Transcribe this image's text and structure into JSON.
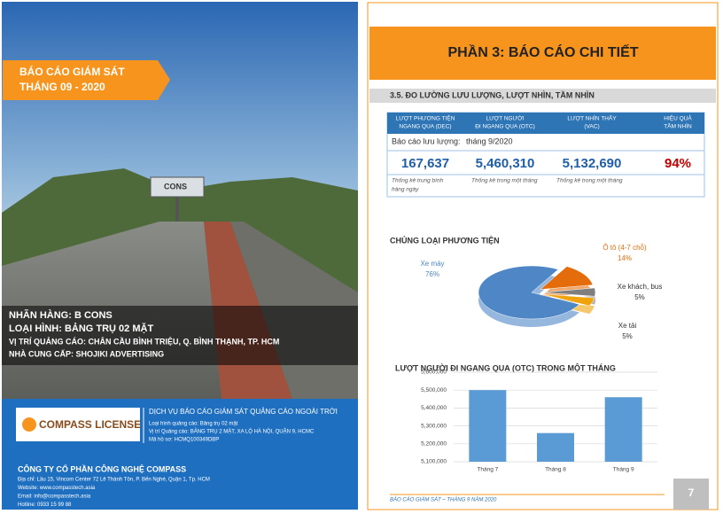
{
  "cover": {
    "banner": [
      "BÁO CÁO GIÁM SÁT",
      "THÁNG 09 - 2020"
    ],
    "billboard": "CONS",
    "info": [
      "NHÃN HÀNG: B CONS",
      "LOẠI HÌNH: BẢNG TRỤ 02 MẶT",
      "VỊ TRÍ QUẢNG CÁO: CHÂN CẦU BÌNH TRIỆU, Q. BÌNH THẠNH, TP. HCM",
      "NHÀ CUNG CẤP: SHOJIKI ADVERTISING"
    ],
    "logo": "COMPASS LICENSE",
    "service": {
      "title": "DỊCH VỤ BÁO CÁO GIÁM SÁT QUẢNG CÁO NGOÀI TRỜI",
      "lines": [
        "Loại hình quảng cáo: Bảng trụ 02 mặt",
        "Vị trí Quảng cáo: BẢNG TRỤ 2 MẶT, XA LỘ HÀ NỘI, QUẬN 9, HCMC",
        "Mã hồ sơ: HCMQ100349DBP"
      ]
    },
    "company": {
      "name": "CÔNG TY CỔ PHẦN CÔNG NGHỆ COMPASS",
      "lines": [
        "Địa chỉ: Lầu 15, Vincom Center 72 Lê Thánh Tôn, P. Bến Nghé, Quận 1, Tp. HCM",
        "Website: www.compasstech.asia",
        "Email: info@compasstech.asia",
        "Hotline: 0933 15 99 88"
      ]
    }
  },
  "report": {
    "heading": "PHẦN 3: BÁO CÁO CHI TIẾT",
    "section": "3.5. ĐO LƯỜNG LƯU LƯỢNG, LƯỢT NHÌN, TẦM NHÌN",
    "table": {
      "headers": [
        [
          "LƯỢT PHƯƠNG TIỆN",
          "NGANG QUA (DEC)"
        ],
        [
          "LƯỢT NGƯỜI",
          "ĐI NGANG QUA (OTC)"
        ],
        [
          "LƯỢT NHÌN THẤY",
          "(VAC)"
        ],
        [
          "HIỆU QUẢ",
          "TẦM NHÌN"
        ]
      ],
      "period_label": "Báo cáo lưu lượng:",
      "period": "tháng 9/2020",
      "values": [
        "167,637",
        "5,460,310",
        "5,132,690",
        "94%"
      ],
      "notes": [
        [
          "Thống kê trung bình",
          "hàng ngày"
        ],
        [
          "Thống kê trong một tháng"
        ],
        [
          "Thống kê trong một tháng"
        ]
      ]
    },
    "footer": "BÁO CÁO GIÁM SÁT – THÁNG 9 NĂM 2020",
    "page": "7"
  },
  "chart_data": [
    {
      "type": "pie",
      "title": "CHỦNG LOẠI PHƯƠNG TIỆN",
      "categories": [
        "Xe máy",
        "Ô tô (4-7 chỗ)",
        "Xe khách, bus",
        "Xe tải"
      ],
      "values": [
        76,
        14,
        5,
        5
      ],
      "value_labels": [
        "76%",
        "14%",
        "5%",
        "5%"
      ],
      "colors": [
        "#4f86c6",
        "#e46c0a",
        "#7f7f7f",
        "#f0a30a"
      ]
    },
    {
      "type": "bar",
      "title": "LƯỢT NGƯỜI ĐI NGANG QUA (OTC) TRONG MỘT THÁNG",
      "categories": [
        "Tháng 7",
        "Tháng 8",
        "Tháng 9"
      ],
      "values": [
        5500000,
        5260000,
        5460310
      ],
      "color": "#5b9bd5",
      "ylim": [
        5100000,
        5600000
      ],
      "yticks": [
        {
          "value": 5100000,
          "label": "5,100,000"
        },
        {
          "value": 5200000,
          "label": "5,200,000"
        },
        {
          "value": 5300000,
          "label": "5,300,000"
        },
        {
          "value": 5400000,
          "label": "5,400,000"
        },
        {
          "value": 5500000,
          "label": "5,500,000"
        },
        {
          "value": 5600000,
          "label": "5,600,000"
        }
      ],
      "grid": true
    }
  ]
}
